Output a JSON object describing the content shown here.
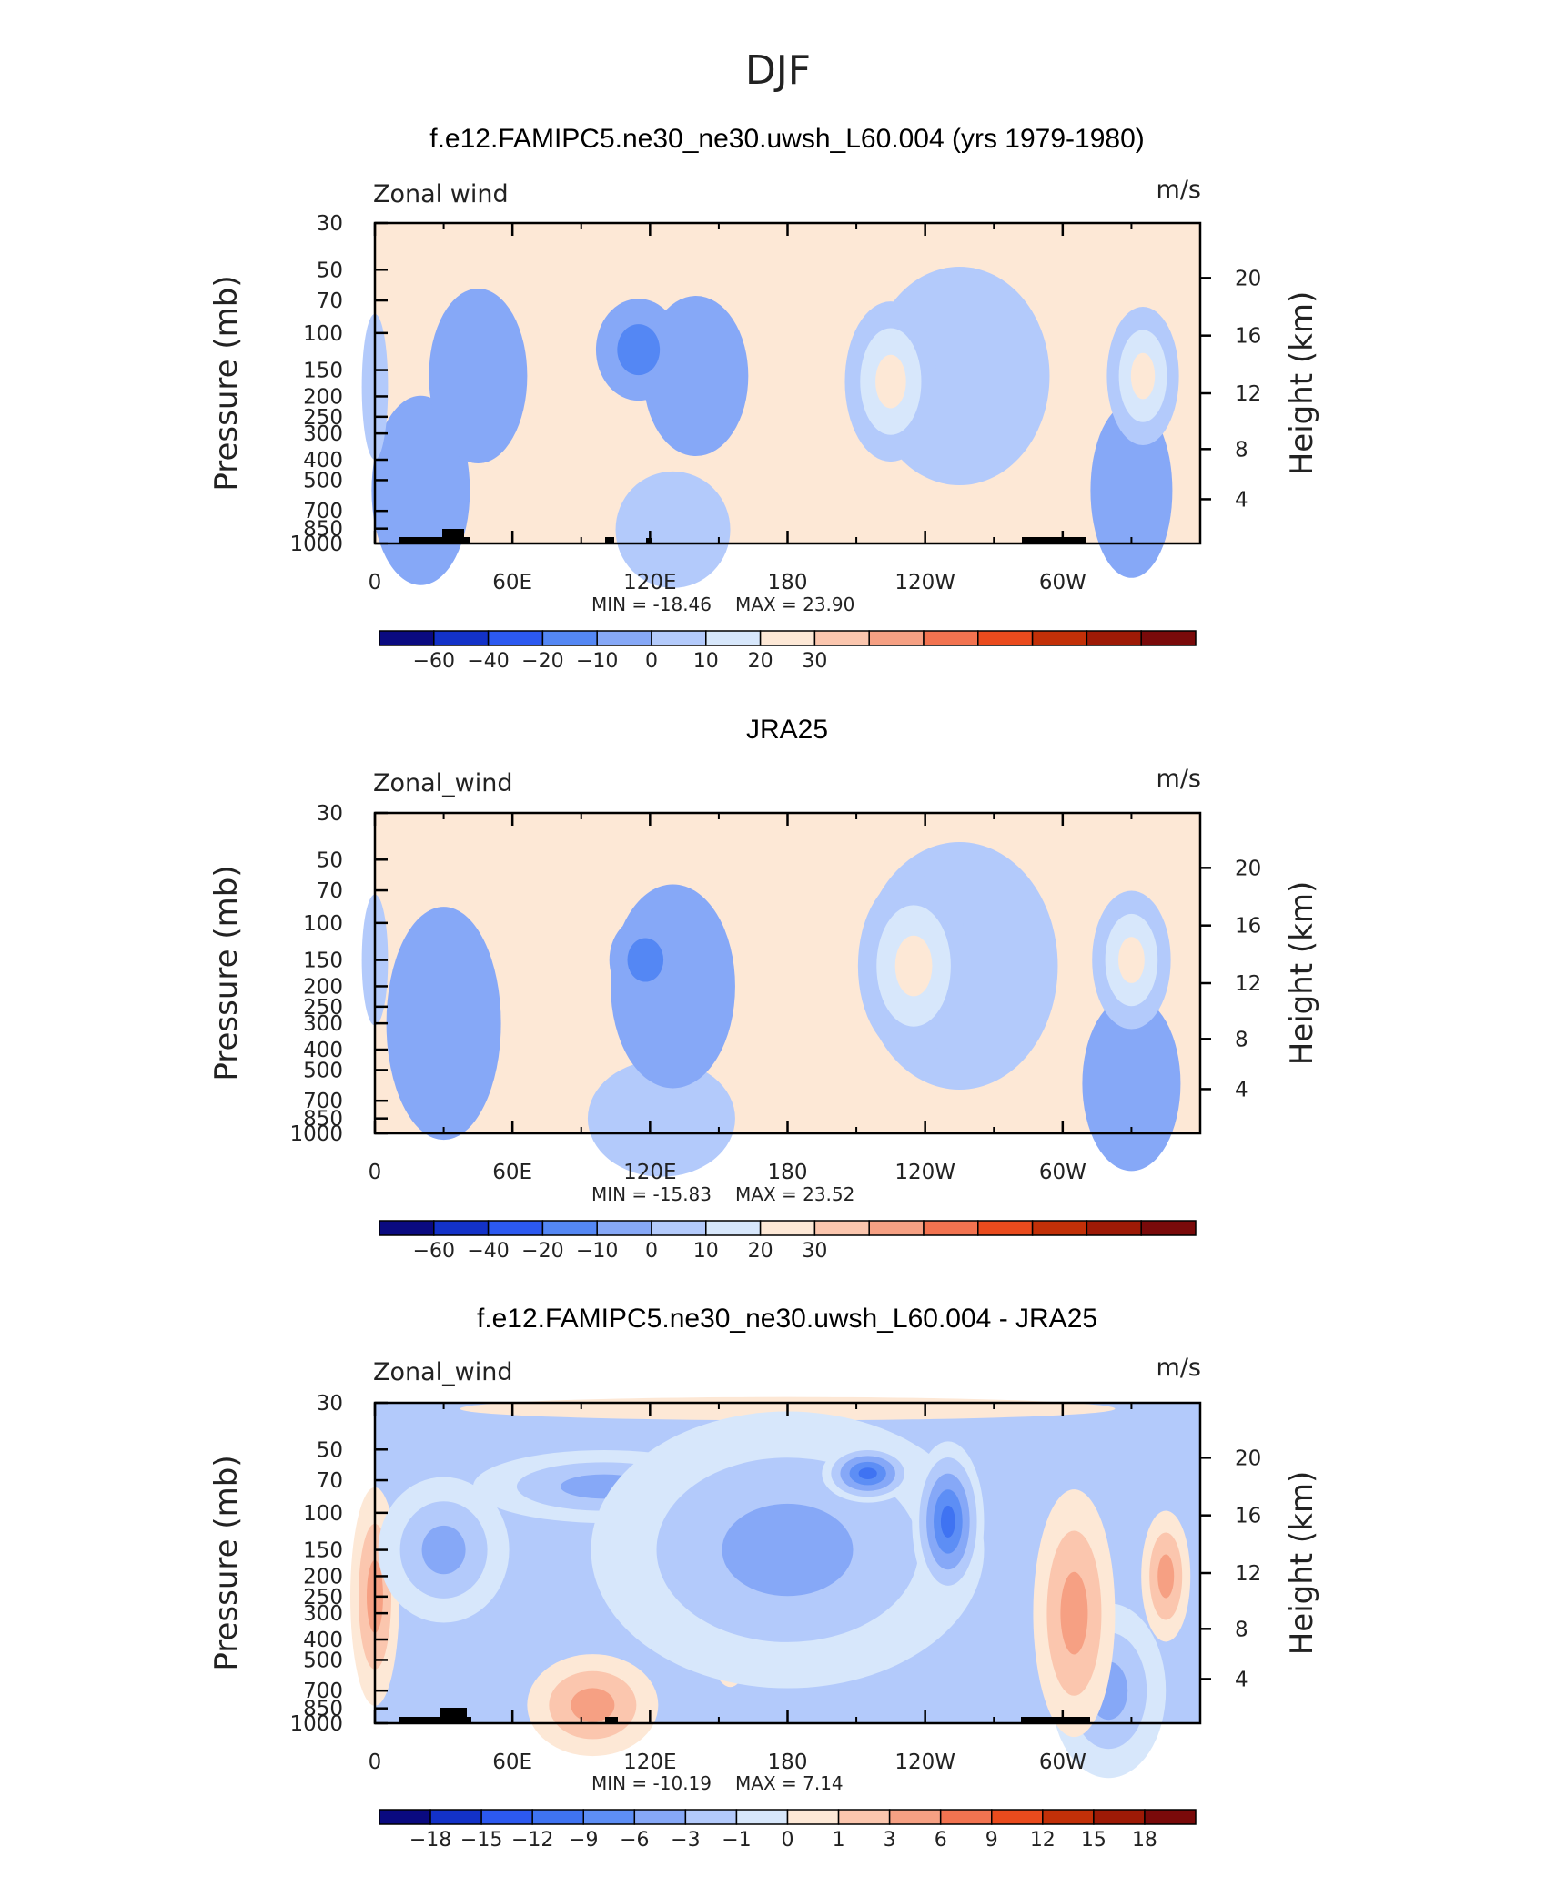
{
  "suptitle": "DJF",
  "cb_labels_main": [
    "-60",
    "-40",
    "-20",
    "-10",
    "0",
    "10",
    "20",
    "30"
  ],
  "cb_labels_diff": [
    "-18",
    "-15",
    "-12",
    "-9",
    "-6",
    "-3",
    "-1",
    "0",
    "1",
    "3",
    "6",
    "9",
    "12",
    "15",
    "18"
  ],
  "chart_data": [
    {
      "type": "heatmap",
      "title": "f.e12.FAMIPC5.ne30_ne30.uwsh_L60.004 (yrs 1979-1980)",
      "variable_label": "Zonal wind",
      "units": "m/s",
      "ylabel": "Pressure (mb)",
      "y2label": "Height (km)",
      "x_ticks": [
        "0",
        "60E",
        "120E",
        "180",
        "120W",
        "60W"
      ],
      "y_ticks": [
        "30",
        "50",
        "70",
        "100",
        "150",
        "200",
        "250",
        "300",
        "400",
        "500",
        "700",
        "850",
        "1000"
      ],
      "y2_ticks": [
        "4",
        "8",
        "12",
        "16",
        "20"
      ],
      "xlim": [
        0,
        360
      ],
      "ylim_mb": [
        1000,
        30
      ],
      "min_text": "MIN = -18.46",
      "max_text": "MAX = 23.90",
      "min": -18.46,
      "max": 23.9,
      "contour_levels": [
        -60,
        -40,
        -20,
        -10,
        0,
        10,
        20,
        30
      ],
      "features": [
        {
          "lon": 115,
          "p": 120,
          "value": -15,
          "w": 26,
          "h": 70
        },
        {
          "lon": 45,
          "p": 160,
          "value": -6,
          "w": 30,
          "h": 120
        },
        {
          "lon": 140,
          "p": 160,
          "value": -6,
          "w": 32,
          "h": 110
        },
        {
          "lon": 20,
          "p": 560,
          "value": -4,
          "w": 30,
          "h": 130
        },
        {
          "lon": 330,
          "p": 560,
          "value": -3,
          "w": 25,
          "h": 120
        },
        {
          "lon": 225,
          "p": 170,
          "value": 23.9,
          "w": 28,
          "h": 110
        },
        {
          "lon": 335,
          "p": 160,
          "value": 23,
          "w": 22,
          "h": 95
        },
        {
          "lon": 255,
          "p": 160,
          "value": 8,
          "w": 55,
          "h": 150
        },
        {
          "lon": 0,
          "p": 180,
          "value": 5,
          "w": 8,
          "h": 100
        },
        {
          "lon": 130,
          "p": 860,
          "value": 6,
          "w": 35,
          "h": 80
        }
      ]
    },
    {
      "type": "heatmap",
      "title": "JRA25",
      "variable_label": "Zonal_wind",
      "units": "m/s",
      "ylabel": "Pressure (mb)",
      "y2label": "Height (km)",
      "x_ticks": [
        "0",
        "60E",
        "120E",
        "180",
        "120W",
        "60W"
      ],
      "y_ticks": [
        "30",
        "50",
        "70",
        "100",
        "150",
        "200",
        "250",
        "300",
        "400",
        "500",
        "700",
        "850",
        "1000"
      ],
      "y2_ticks": [
        "4",
        "8",
        "12",
        "16",
        "20"
      ],
      "xlim": [
        0,
        360
      ],
      "ylim_mb": [
        1000,
        30
      ],
      "min_text": "MIN = -15.83",
      "max_text": "MAX = 23.52",
      "min": -15.83,
      "max": 23.52,
      "contour_levels": [
        -60,
        -40,
        -20,
        -10,
        0,
        10,
        20,
        30
      ],
      "features": [
        {
          "lon": 118,
          "p": 150,
          "value": -12,
          "w": 22,
          "h": 60
        },
        {
          "lon": 130,
          "p": 200,
          "value": -6,
          "w": 38,
          "h": 140
        },
        {
          "lon": 30,
          "p": 300,
          "value": -4,
          "w": 35,
          "h": 160
        },
        {
          "lon": 330,
          "p": 580,
          "value": -3,
          "w": 30,
          "h": 120
        },
        {
          "lon": 235,
          "p": 160,
          "value": 23.5,
          "w": 34,
          "h": 125
        },
        {
          "lon": 330,
          "p": 150,
          "value": 20,
          "w": 24,
          "h": 95
        },
        {
          "lon": 255,
          "p": 160,
          "value": 8,
          "w": 60,
          "h": 170
        },
        {
          "lon": 0,
          "p": 150,
          "value": 4,
          "w": 8,
          "h": 90
        },
        {
          "lon": 125,
          "p": 850,
          "value": 5,
          "w": 45,
          "h": 80
        }
      ]
    },
    {
      "type": "heatmap",
      "title": "f.e12.FAMIPC5.ne30_ne30.uwsh_L60.004 - JRA25",
      "variable_label": "Zonal_wind",
      "units": "m/s",
      "ylabel": "Pressure (mb)",
      "y2label": "Height (km)",
      "x_ticks": [
        "0",
        "60E",
        "120E",
        "180",
        "120W",
        "60W"
      ],
      "y_ticks": [
        "30",
        "50",
        "70",
        "100",
        "150",
        "200",
        "250",
        "300",
        "400",
        "500",
        "700",
        "850",
        "1000"
      ],
      "y2_ticks": [
        "4",
        "8",
        "12",
        "16",
        "20"
      ],
      "xlim": [
        0,
        360
      ],
      "ylim_mb": [
        1000,
        30
      ],
      "min_text": "MIN = -10.19",
      "max_text": "MAX = 7.14",
      "min": -10.19,
      "max": 7.14,
      "contour_levels": [
        -18,
        -15,
        -12,
        -9,
        -6,
        -3,
        -1,
        0,
        1,
        3,
        6,
        9,
        12,
        15,
        18
      ],
      "features": [
        {
          "lon": 180,
          "p": 150,
          "value": -5,
          "w": 120,
          "h": 190
        },
        {
          "lon": 250,
          "p": 110,
          "value": -10,
          "w": 22,
          "h": 110
        },
        {
          "lon": 215,
          "p": 65,
          "value": -9,
          "w": 28,
          "h": 40
        },
        {
          "lon": 100,
          "p": 75,
          "value": -4,
          "w": 80,
          "h": 50
        },
        {
          "lon": 30,
          "p": 150,
          "value": -4,
          "w": 40,
          "h": 100
        },
        {
          "lon": 320,
          "p": 700,
          "value": -3,
          "w": 35,
          "h": 120
        },
        {
          "lon": 305,
          "p": 300,
          "value": 4,
          "w": 25,
          "h": 170
        },
        {
          "lon": 345,
          "p": 200,
          "value": 5.5,
          "w": 15,
          "h": 90
        },
        {
          "lon": 0,
          "p": 250,
          "value": 3.5,
          "w": 15,
          "h": 150
        },
        {
          "lon": 95,
          "p": 820,
          "value": 3.2,
          "w": 40,
          "h": 70
        },
        {
          "lon": 155,
          "p": 280,
          "value": 1,
          "w": 16,
          "h": 110
        },
        {
          "lon": 220,
          "p": 160,
          "value": 0.5,
          "w": 12,
          "h": 70
        },
        {
          "lon": 180,
          "p": 32,
          "value": 0.4,
          "w": 200,
          "h": 16
        }
      ]
    }
  ]
}
